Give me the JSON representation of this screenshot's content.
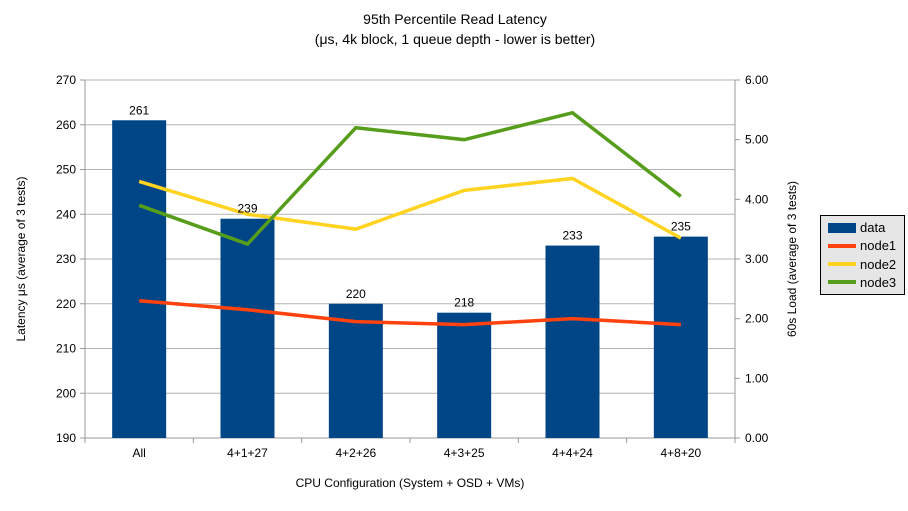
{
  "title": {
    "line1": "95th Percentile Read Latency",
    "line2": "(μs, 4k block, 1 queue depth - lower is better)"
  },
  "chart_data": {
    "type": "bar",
    "subtype": "bar-line-combo-dual-axis",
    "categories": [
      "All",
      "4+1+27",
      "4+2+26",
      "4+3+25",
      "4+4+24",
      "4+8+20"
    ],
    "bar_series": {
      "name": "data",
      "axis": "left",
      "color": "#004586",
      "values": [
        261,
        239,
        220,
        218,
        233,
        235
      ],
      "data_labels": [
        "261",
        "239",
        "220",
        "218",
        "233",
        "235"
      ]
    },
    "line_series": [
      {
        "name": "node1",
        "axis": "right",
        "color": "#ff420e",
        "values": [
          2.3,
          2.15,
          1.95,
          1.9,
          2.0,
          1.9
        ]
      },
      {
        "name": "node2",
        "axis": "right",
        "color": "#ffd320",
        "values": [
          4.3,
          3.75,
          3.5,
          4.15,
          4.35,
          3.35
        ]
      },
      {
        "name": "node3",
        "axis": "right",
        "color": "#579d1c",
        "values": [
          3.9,
          3.25,
          5.2,
          5.0,
          5.45,
          4.05
        ]
      }
    ],
    "left_axis": {
      "label": "Latency μs (average of 3 tests)",
      "min": 190,
      "max": 270,
      "step": 10,
      "decimals": 0
    },
    "right_axis": {
      "label": "60s Load (average of 3 tests)",
      "min": 0,
      "max": 6,
      "step": 1,
      "decimals": 2
    },
    "xlabel": "CPU Configuration (System + OSD + VMs)",
    "legend": {
      "position": "right",
      "entries": [
        "data",
        "node1",
        "node2",
        "node3"
      ]
    },
    "grid": "horizontal-only",
    "colors": {
      "grid_line": "#b3b3b3",
      "axis_line": "#999999",
      "text": "#000000",
      "legend_bg": "#e6e6e6",
      "legend_border": "#000000",
      "background": "#ffffff"
    }
  }
}
